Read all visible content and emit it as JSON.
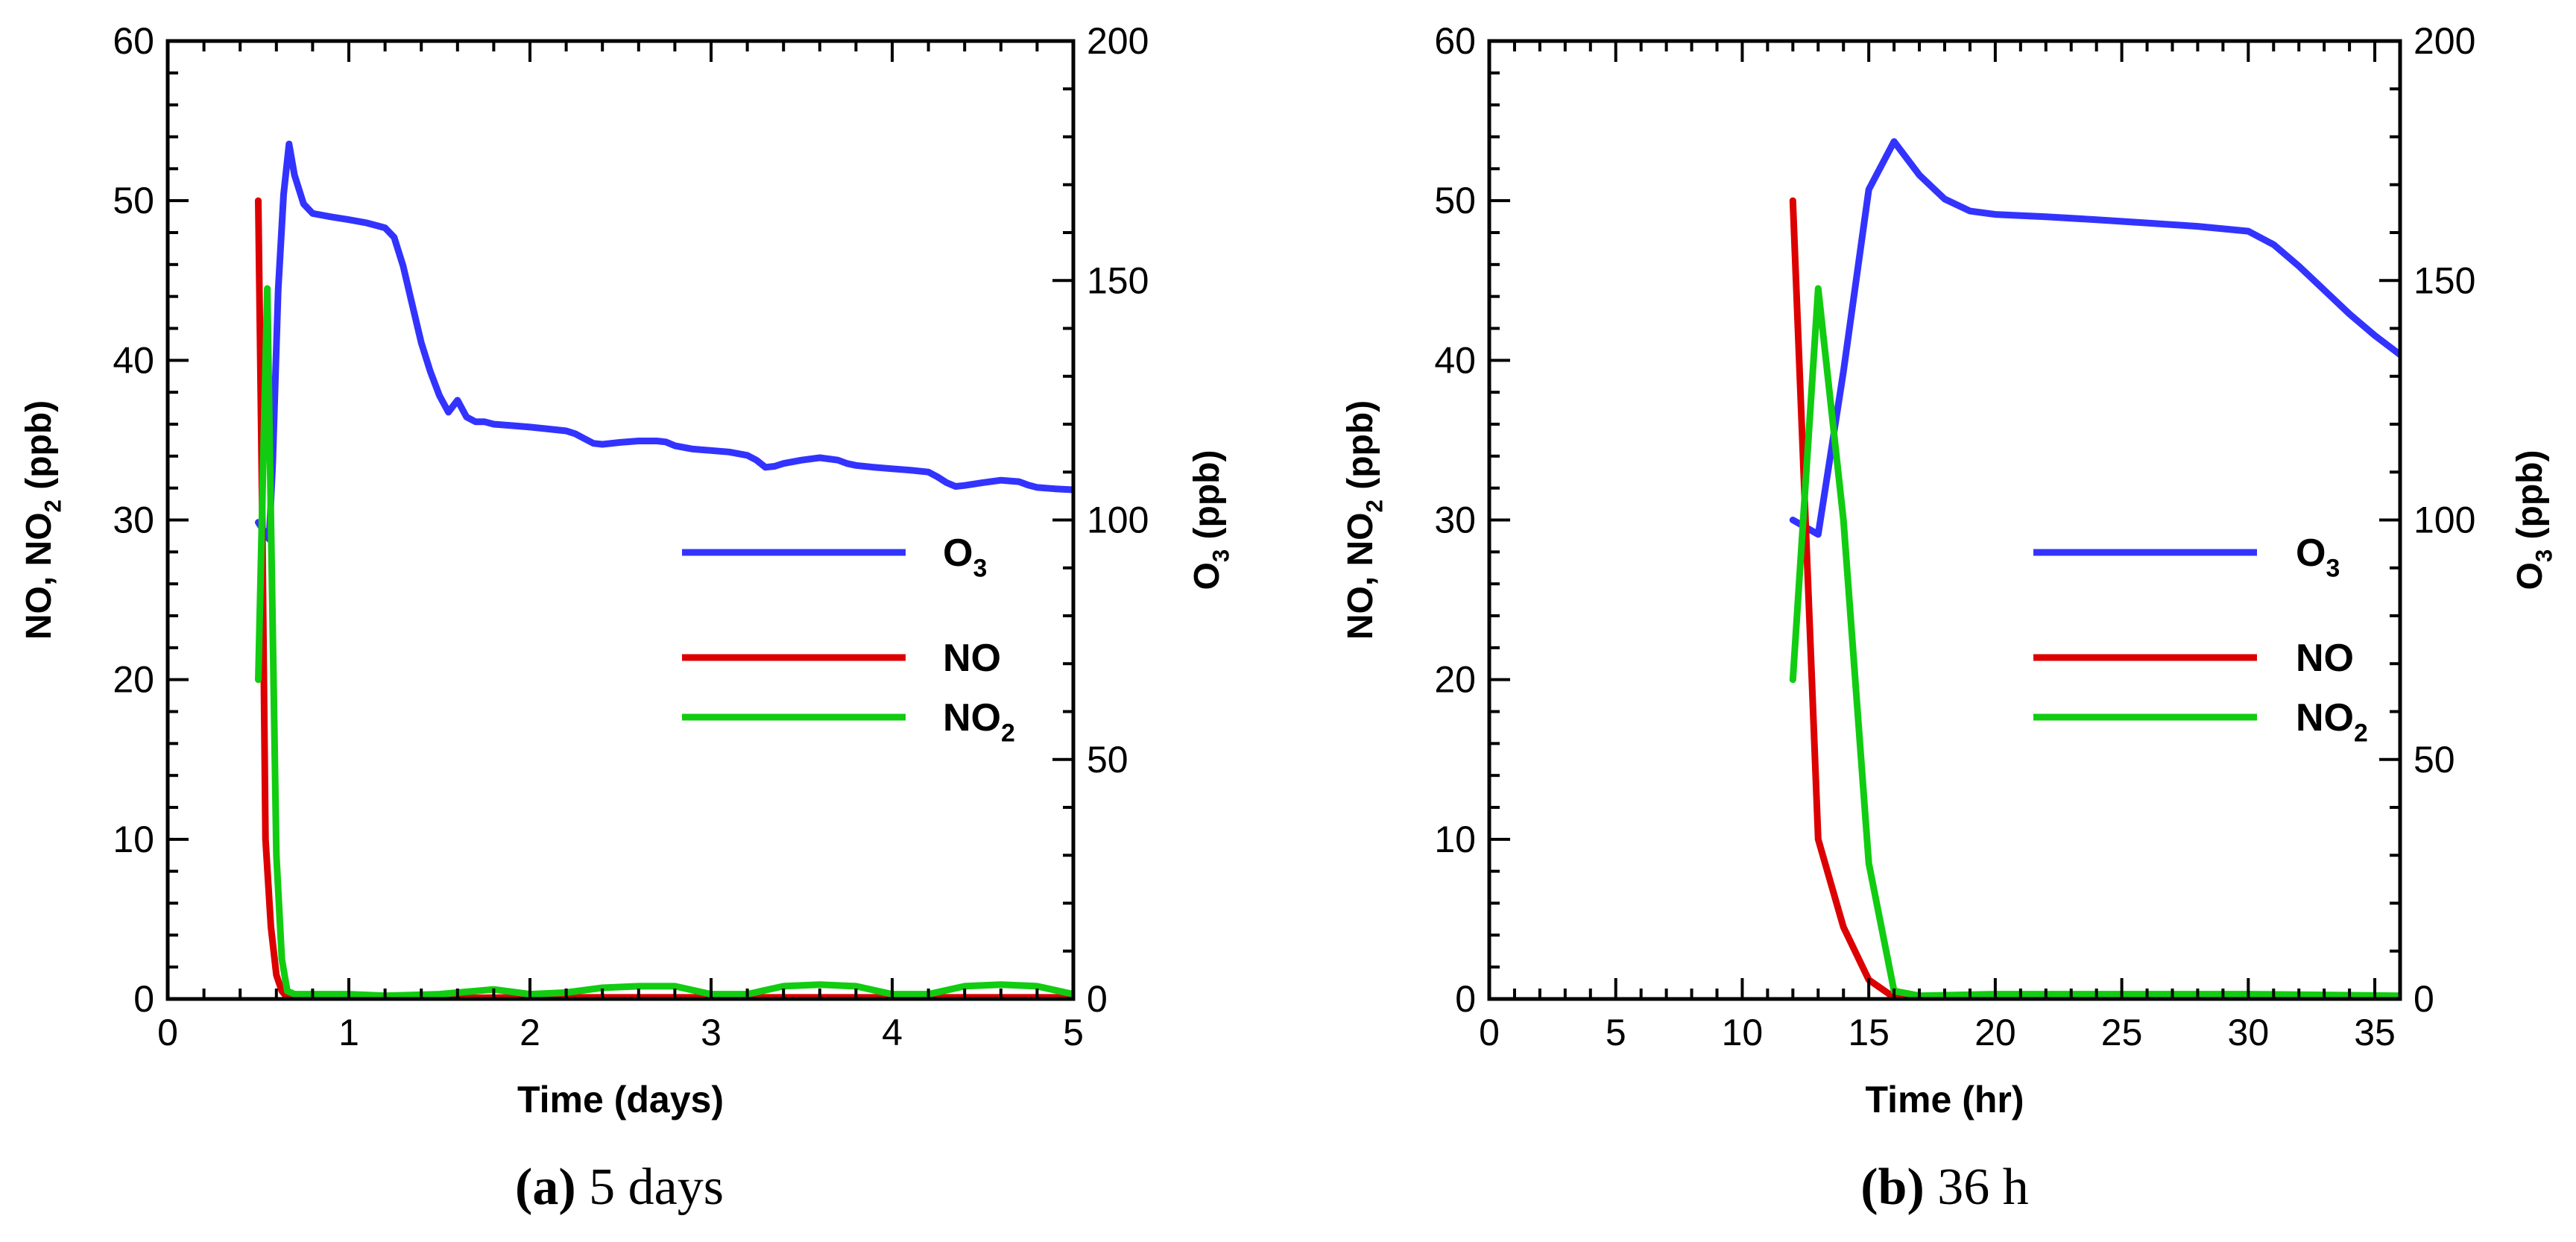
{
  "chart_data": [
    {
      "type": "line",
      "caption": {
        "letter": "(a)",
        "text": "5 days"
      },
      "xlabel": "Time (days)",
      "xlim": [
        0,
        5
      ],
      "xticks": [
        0,
        1,
        2,
        3,
        4,
        5
      ],
      "ylabel_left": {
        "base": "NO, NO",
        "sub": "2",
        "tail": " (ppb)"
      },
      "ylim_left": [
        0,
        60
      ],
      "yticks_left": [
        0,
        10,
        20,
        30,
        40,
        50,
        60
      ],
      "ylabel_right": {
        "base": "O",
        "sub": "3",
        "tail": " (ppb)"
      },
      "ylim_right": [
        0,
        200
      ],
      "yticks_right": [
        0,
        50,
        100,
        150,
        200
      ],
      "legend_position": "right-middle",
      "series": [
        {
          "name": "O3",
          "label_base": "O",
          "label_sub": "3",
          "color": "#3333ff",
          "axis": "right",
          "x": [
            0.5,
            0.56,
            0.58,
            0.61,
            0.64,
            0.67,
            0.7,
            0.75,
            0.8,
            0.9,
            1.0,
            1.1,
            1.2,
            1.25,
            1.3,
            1.35,
            1.4,
            1.45,
            1.5,
            1.55,
            1.6,
            1.65,
            1.7,
            1.75,
            1.8,
            1.9,
            2.0,
            2.1,
            2.2,
            2.25,
            2.3,
            2.35,
            2.4,
            2.5,
            2.6,
            2.7,
            2.75,
            2.8,
            2.9,
            3.0,
            3.1,
            3.2,
            3.25,
            3.3,
            3.35,
            3.4,
            3.5,
            3.6,
            3.7,
            3.75,
            3.8,
            3.9,
            4.0,
            4.1,
            4.2,
            4.25,
            4.3,
            4.35,
            4.4,
            4.5,
            4.6,
            4.7,
            4.75,
            4.8,
            4.9,
            5.0
          ],
          "y": [
            99.5,
            96.0,
            112.0,
            148.0,
            168.0,
            178.5,
            172.0,
            166.0,
            164.0,
            163.3,
            162.7,
            162.0,
            161.0,
            159.0,
            153.0,
            145.0,
            137.0,
            131.0,
            126.0,
            122.5,
            125.0,
            121.5,
            120.5,
            120.5,
            120.0,
            119.7,
            119.4,
            119.0,
            118.6,
            118.0,
            117.0,
            116.0,
            115.8,
            116.2,
            116.5,
            116.5,
            116.3,
            115.5,
            114.8,
            114.5,
            114.2,
            113.5,
            112.5,
            111.0,
            111.2,
            111.8,
            112.5,
            113.0,
            112.5,
            111.8,
            111.4,
            111.0,
            110.7,
            110.4,
            110.0,
            109.0,
            107.8,
            107.0,
            107.2,
            107.8,
            108.3,
            108.0,
            107.3,
            106.8,
            106.5,
            106.3
          ]
        },
        {
          "name": "NO",
          "label_base": "NO",
          "label_sub": "",
          "color": "#dd0000",
          "axis": "left",
          "x": [
            0.5,
            0.52,
            0.54,
            0.57,
            0.6,
            0.63,
            0.66,
            0.7,
            0.8,
            1.0,
            1.5,
            2.0,
            2.5,
            3.0,
            3.5,
            4.0,
            4.5,
            5.0
          ],
          "y": [
            50.0,
            32.0,
            10.0,
            4.5,
            1.5,
            0.5,
            0.1,
            0.05,
            0.05,
            0.05,
            0.05,
            0.1,
            0.1,
            0.1,
            0.1,
            0.1,
            0.1,
            0.1
          ]
        },
        {
          "name": "NO2",
          "label_base": "NO",
          "label_sub": "2",
          "color": "#11cc11",
          "axis": "left",
          "x": [
            0.5,
            0.53,
            0.55,
            0.57,
            0.6,
            0.63,
            0.66,
            0.7,
            0.8,
            1.0,
            1.2,
            1.5,
            1.8,
            2.0,
            2.2,
            2.4,
            2.6,
            2.8,
            3.0,
            3.2,
            3.4,
            3.6,
            3.8,
            4.0,
            4.2,
            4.4,
            4.6,
            4.8,
            5.0
          ],
          "y": [
            20.0,
            35.0,
            44.5,
            30.0,
            9.0,
            2.5,
            0.5,
            0.3,
            0.3,
            0.3,
            0.2,
            0.3,
            0.6,
            0.3,
            0.4,
            0.7,
            0.8,
            0.8,
            0.3,
            0.3,
            0.8,
            0.9,
            0.8,
            0.3,
            0.3,
            0.8,
            0.9,
            0.8,
            0.3
          ]
        }
      ]
    },
    {
      "type": "line",
      "caption": {
        "letter": "(b)",
        "text": "36 h"
      },
      "xlabel": "Time (hr)",
      "xlim": [
        0,
        36
      ],
      "xticks": [
        0,
        5,
        10,
        15,
        20,
        25,
        30,
        35
      ],
      "ylabel_left": {
        "base": "NO, NO",
        "sub": "2",
        "tail": " (ppb)"
      },
      "ylim_left": [
        0,
        60
      ],
      "yticks_left": [
        0,
        10,
        20,
        30,
        40,
        50,
        60
      ],
      "ylabel_right": {
        "base": "O",
        "sub": "3",
        "tail": " (ppb)"
      },
      "ylim_right": [
        0,
        200
      ],
      "yticks_right": [
        0,
        50,
        100,
        150,
        200
      ],
      "legend_position": "right-middle",
      "series": [
        {
          "name": "O3",
          "label_base": "O",
          "label_sub": "3",
          "color": "#3333ff",
          "axis": "right",
          "x": [
            12,
            13,
            14,
            15,
            16,
            17,
            18,
            19,
            20,
            22,
            24,
            26,
            28,
            30,
            31,
            32,
            33,
            34,
            35,
            36
          ],
          "y": [
            100,
            97,
            131,
            169,
            179,
            172,
            167,
            164.5,
            163.8,
            163.3,
            162.7,
            162.0,
            161.3,
            160.3,
            157.5,
            153,
            148,
            143,
            138.5,
            134.5
          ]
        },
        {
          "name": "NO",
          "label_base": "NO",
          "label_sub": "",
          "color": "#dd0000",
          "axis": "left",
          "x": [
            12,
            12.5,
            13,
            14,
            15,
            16,
            17,
            20,
            25,
            30,
            36
          ],
          "y": [
            50.0,
            30.0,
            10.0,
            4.5,
            1.2,
            0.1,
            0.05,
            0.05,
            0.05,
            0.05,
            0.05
          ]
        },
        {
          "name": "NO2",
          "label_base": "NO",
          "label_sub": "2",
          "color": "#11cc11",
          "axis": "left",
          "x": [
            12,
            13,
            14,
            15,
            16,
            17,
            20,
            25,
            30,
            36
          ],
          "y": [
            20.0,
            44.5,
            30.0,
            8.5,
            0.5,
            0.2,
            0.3,
            0.3,
            0.3,
            0.2
          ]
        }
      ]
    }
  ]
}
